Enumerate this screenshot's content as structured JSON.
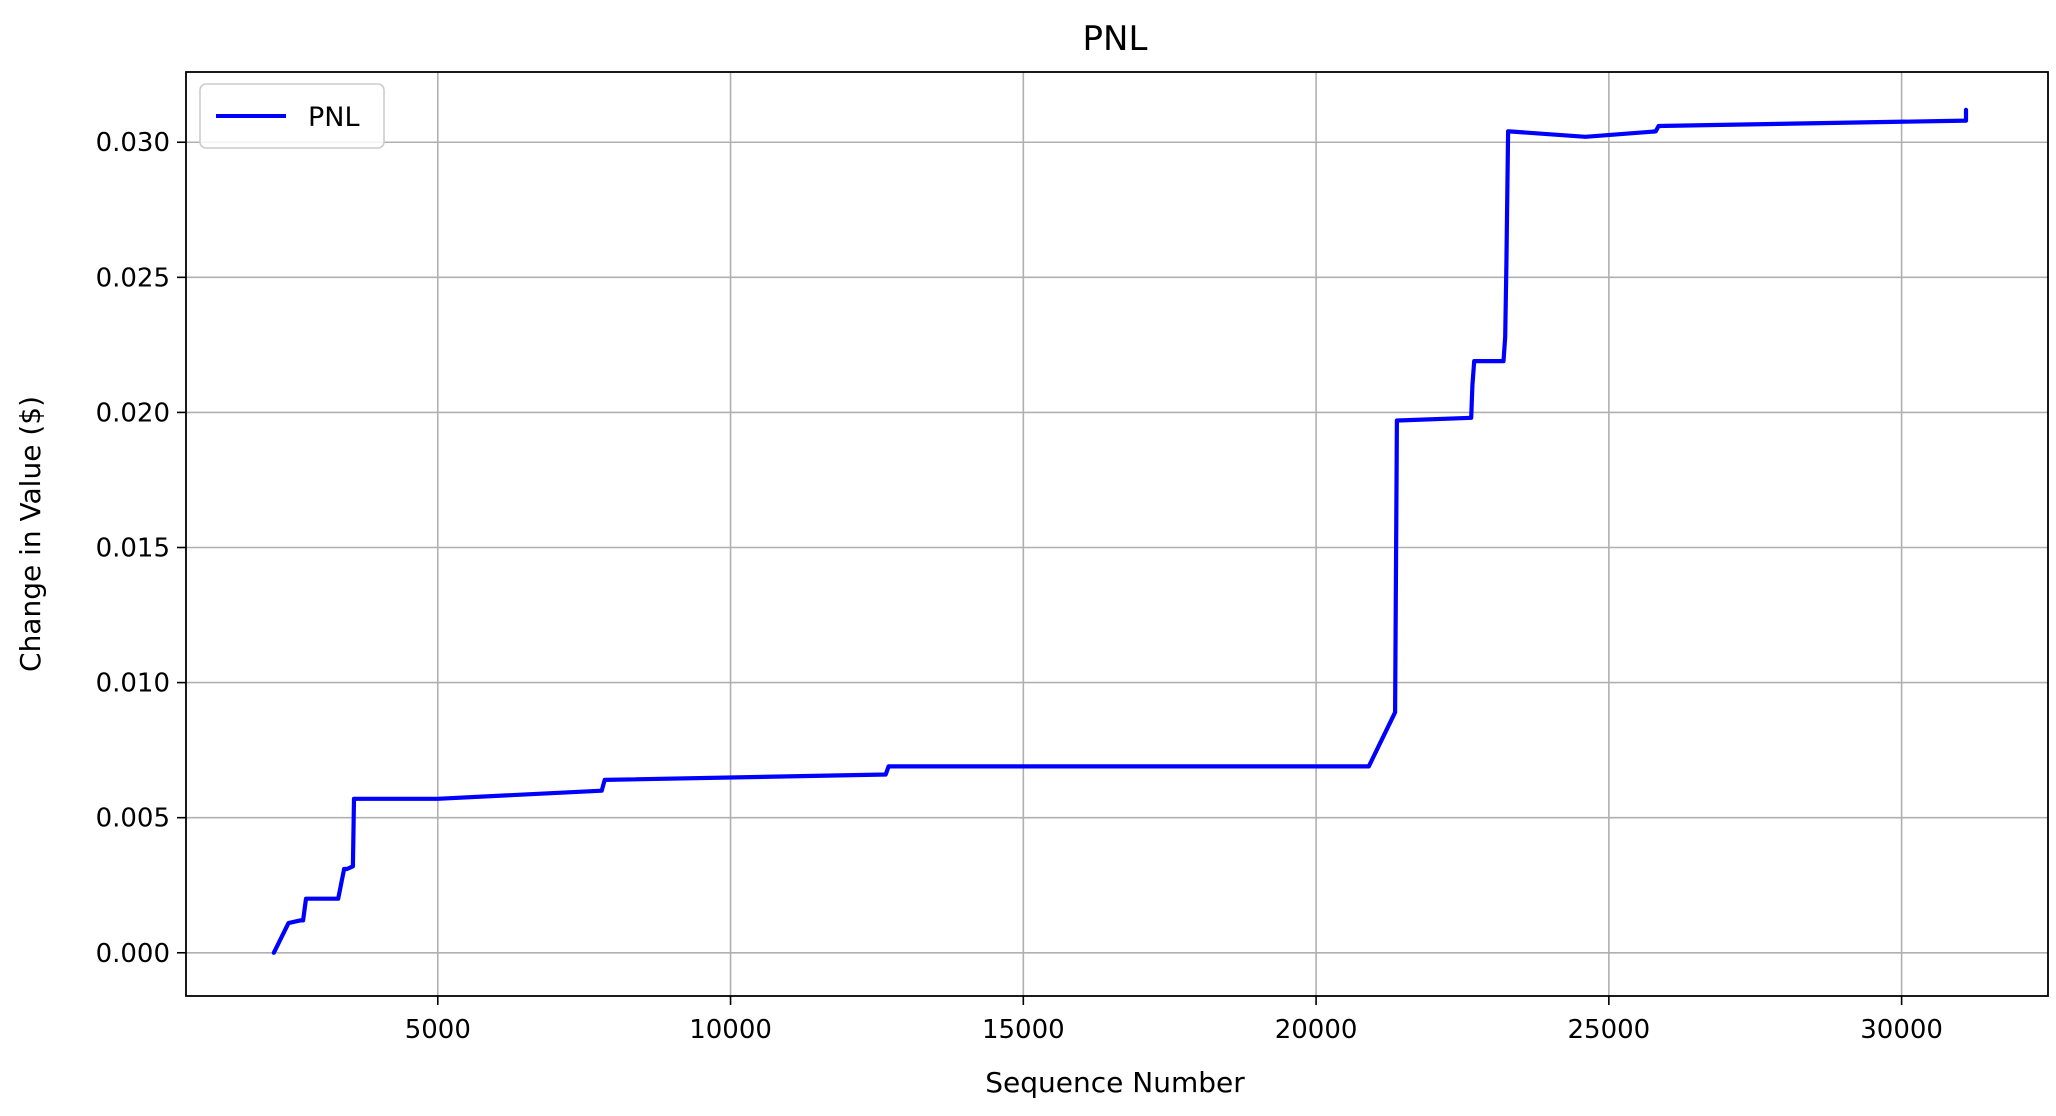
{
  "chart_data": {
    "type": "line",
    "title": "PNL",
    "xlabel": "Sequence Number",
    "ylabel": "Change in Value ($)",
    "xlim": [
      700,
      32500
    ],
    "ylim": [
      -0.0016,
      0.0326
    ],
    "xticks": [
      5000,
      10000,
      15000,
      20000,
      25000,
      30000
    ],
    "xtick_labels": [
      "5000",
      "10000",
      "15000",
      "20000",
      "25000",
      "30000"
    ],
    "yticks": [
      0.0,
      0.005,
      0.01,
      0.015,
      0.02,
      0.025,
      0.03
    ],
    "ytick_labels": [
      "0.000",
      "0.005",
      "0.010",
      "0.015",
      "0.020",
      "0.025",
      "0.030"
    ],
    "grid": true,
    "legend": {
      "position": "upper-left",
      "entries": [
        "PNL"
      ]
    },
    "series": [
      {
        "name": "PNL",
        "color": "#0000ff",
        "x": [
          2200,
          2450,
          2650,
          2700,
          2750,
          3300,
          3400,
          3450,
          3550,
          3570,
          5000,
          7800,
          7850,
          12650,
          12700,
          20900,
          21350,
          21380,
          21400,
          22650,
          22670,
          22700,
          23200,
          23230,
          23250,
          23280,
          23300,
          24600,
          25800,
          25850,
          31100,
          31100,
          31100
        ],
        "y": [
          0.0,
          0.0011,
          0.0012,
          0.0012,
          0.002,
          0.002,
          0.0031,
          0.0031,
          0.0032,
          0.0057,
          0.0057,
          0.006,
          0.0064,
          0.0066,
          0.0069,
          0.0069,
          0.0089,
          0.0197,
          0.0197,
          0.0198,
          0.021,
          0.0219,
          0.0219,
          0.0228,
          0.0255,
          0.0304,
          0.0304,
          0.0302,
          0.0304,
          0.0306,
          0.0308,
          0.0312,
          0.0308
        ]
      }
    ]
  }
}
